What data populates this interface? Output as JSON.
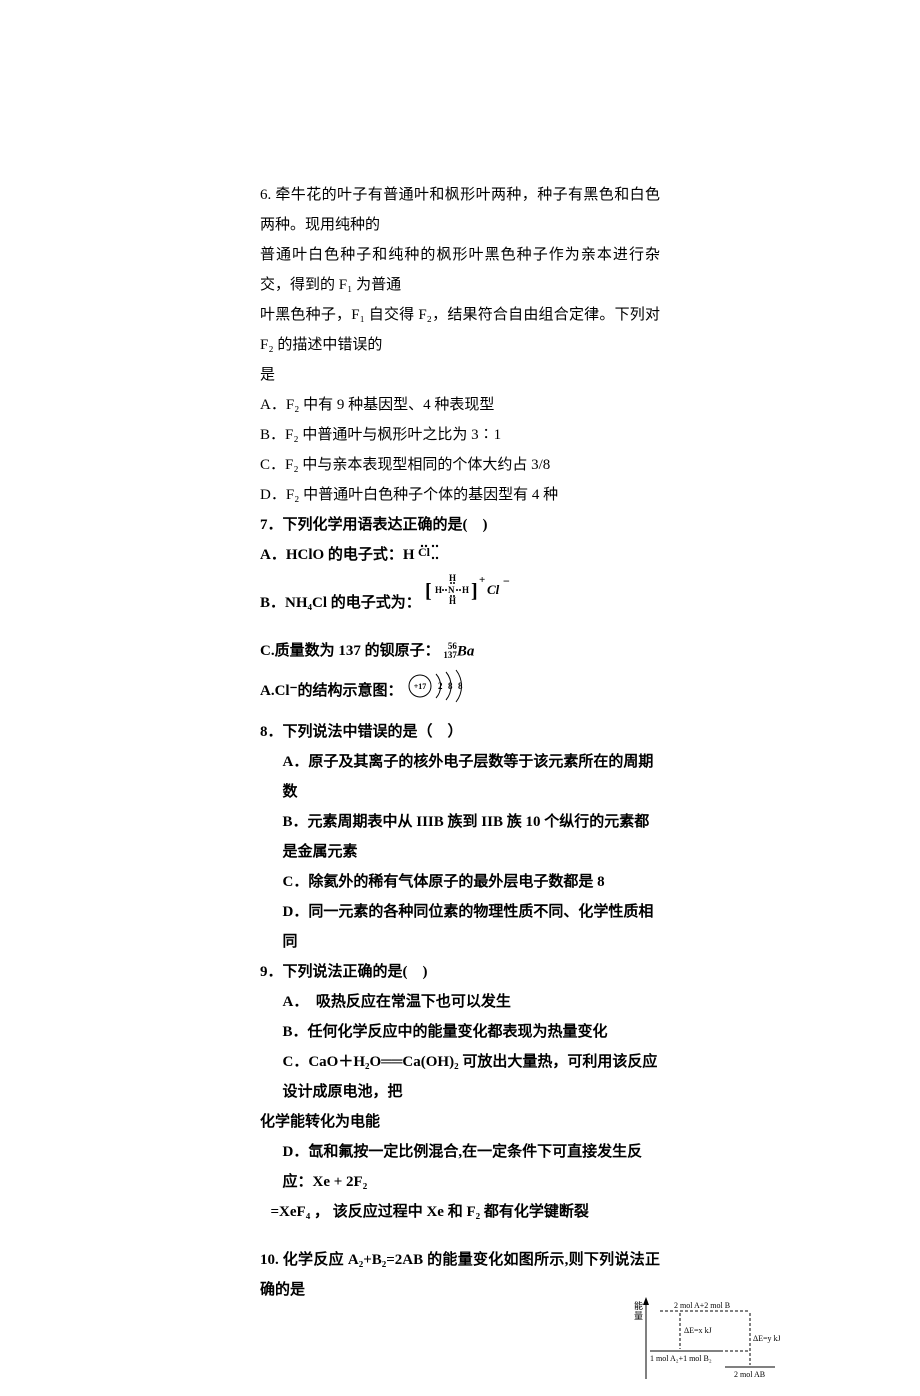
{
  "q6": {
    "stem_line1": "6. 牵牛花的叶子有普通叶和枫形叶两种，种子有黑色和白色两种。现用纯种的",
    "stem_line2": "普通叶白色种子和纯种的枫形叶黑色种子作为亲本进行杂交，得到的 F₁ 为普通",
    "stem_line3": "叶黑色种子，F₁ 自交得 F₂，结果符合自由组合定律。下列对 F₂ 的描述中错误的",
    "stem_line4": "是",
    "optA": "A．F₂ 中有 9 种基因型、4 种表现型",
    "optB": "B．F₂ 中普通叶与枫形叶之比为 3∶1",
    "optC": "C．F₂ 中与亲本表现型相同的个体大约占 3/8",
    "optD": "D．F₂ 中普通叶白色种子个体的基因型有 4 种"
  },
  "q7": {
    "stem": "7．下列化学用语表达正确的是(　)",
    "optA_prefix": "A．HClO 的电子式：H",
    "optB_prefix": "B．NH₄Cl  的电子式为：",
    "optC_prefix": "C.质量数为 137 的钡原子：",
    "optC_mass": "56",
    "optC_num": "137",
    "optC_sym": "Ba",
    "optD_prefix": "A.Cl⁻的结构示意图：",
    "atom_center": "+17",
    "atom_shells": [
      "2",
      "8",
      "8"
    ]
  },
  "q8": {
    "stem": "8．下列说法中错误的是（　）",
    "optA": "A．原子及其离子的核外电子层数等于该元素所在的周期数",
    "optB": "B．元素周期表中从 IIIB 族到 IIB 族 10 个纵行的元素都是金属元素",
    "optC": "C．除氦外的稀有气体原子的最外层电子数都是 8",
    "optD": "D．同一元素的各种同位素的物理性质不同、化学性质相同"
  },
  "q9": {
    "stem": "9．下列说法正确的是(　)",
    "optA": "A．　吸热反应在常温下也可以发生",
    "optB": "B．任何化学反应中的能量变化都表现为热量变化",
    "optC_line1": "C．CaO＋H₂O══Ca(OH)₂ 可放出大量热，可利用该反应设计成原电池，把",
    "optC_line2": "化学能转化为电能",
    "optD_line1": "D．氙和氟按一定比例混合,在一定条件下可直接发生反应：Xe + 2F₂",
    "optD_line2": " =XeF₄ ， 该反应过程中 Xe 和 F₂ 都有化学键断裂"
  },
  "q10": {
    "stem": "10.  化学反应 A₂+B₂=2AB 的能量变化如图所示,则下列说法正确的是",
    "diagram": {
      "ylabel": "能量",
      "top_label": "2 mol A+2 mol B",
      "mid_label_left": "ΔE=x kJ",
      "mid_label_right": "ΔE=y kJ",
      "reactant_label": "1 mol A₂+1 mol B₂",
      "product_label": "2 mol AB",
      "axis_color": "#000000",
      "line_color": "#000000",
      "dash_pattern": "3,2",
      "font_size": 8,
      "width": 150,
      "height": 90
    }
  }
}
